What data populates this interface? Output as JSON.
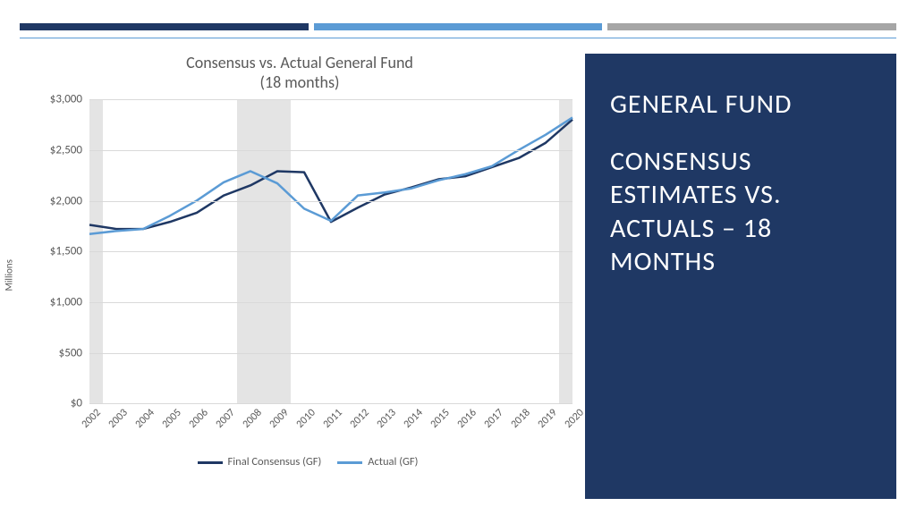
{
  "top_bars": {
    "colors": [
      "#1f3864",
      "#5b9bd5",
      "#a6a6a6"
    ]
  },
  "panel": {
    "bg_color": "#1f3864",
    "title_line1": "GENERAL FUND",
    "title_line2": "CONSENSUS ESTIMATES VS. ACTUALS – 18 MONTHS"
  },
  "chart": {
    "title_l1": "Consensus vs. Actual General Fund",
    "title_l2": "(18 months)",
    "y_label": "Millions",
    "ylim": [
      0,
      3000
    ],
    "ytick_step": 500,
    "y_prefix": "$",
    "y_thousands_sep": ",",
    "grid_color": "#d9d9d9",
    "background_color": "#ffffff",
    "text_color": "#595959",
    "years": [
      "2002",
      "2003",
      "2004",
      "2005",
      "2006",
      "2007",
      "2008",
      "2009",
      "2010",
      "2011",
      "2012",
      "2013",
      "2014",
      "2015",
      "2016",
      "2017",
      "2018",
      "2019",
      "2020"
    ],
    "shaded_bands": [
      {
        "start_index": 0,
        "end_index": 1
      },
      {
        "start_index": 6,
        "end_index": 8
      },
      {
        "start_index": 18,
        "end_index": 19
      }
    ],
    "series": [
      {
        "name": "Final Consensus (GF)",
        "color": "#1f3864",
        "line_width": 2.5,
        "values": [
          1760,
          1720,
          1720,
          1790,
          1880,
          2050,
          2150,
          2290,
          2280,
          1790,
          1930,
          2060,
          2130,
          2210,
          2240,
          2330,
          2420,
          2570,
          2800
        ]
      },
      {
        "name": "Actual (GF)",
        "color": "#5b9bd5",
        "line_width": 2.5,
        "values": [
          1670,
          1700,
          1720,
          1850,
          2000,
          2180,
          2290,
          2170,
          1920,
          1800,
          2050,
          2080,
          2120,
          2200,
          2260,
          2340,
          2500,
          2650,
          2820
        ]
      }
    ]
  }
}
